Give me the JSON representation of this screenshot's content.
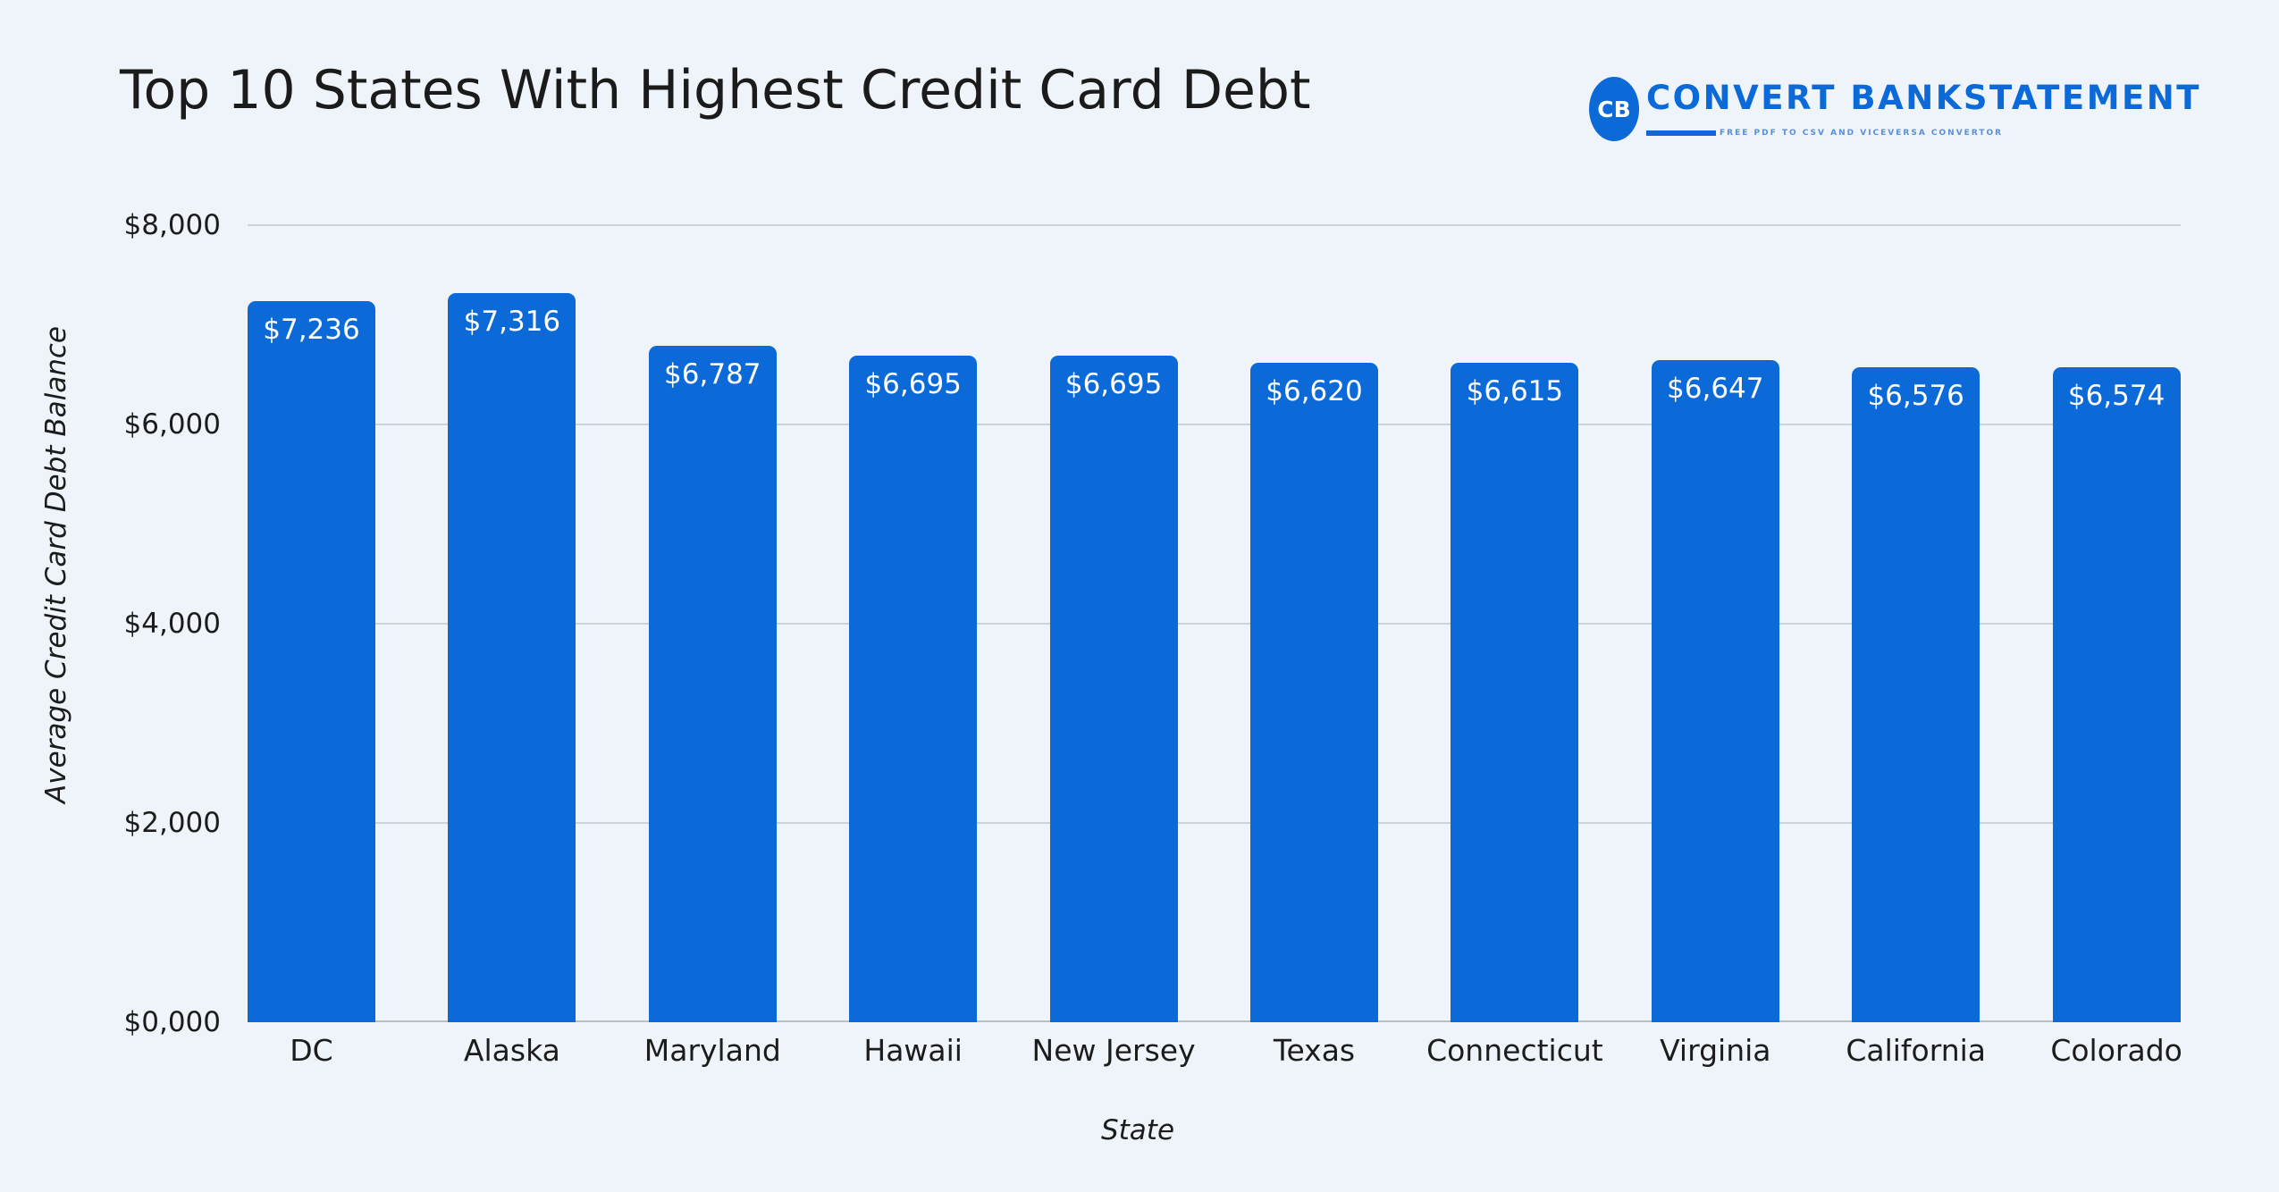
{
  "header": {
    "title": "Top 10 States With Highest Credit Card Debt"
  },
  "logo": {
    "badge": "CB",
    "name": "CONVERT BANKSTATEMENT",
    "tagline": "FREE PDF TO CSV AND VICEVERSA CONVERTOR",
    "color": "#0B69D8"
  },
  "colors": {
    "bar": "#0B69D8",
    "background": "#EEF4F9",
    "gridline": "#CDD3DA"
  },
  "chart_data": {
    "type": "bar",
    "title": "Top 10 States With Highest Credit Card Debt",
    "xlabel": "State",
    "ylabel": "Average Credit Card Debt Balance",
    "categories": [
      "DC",
      "Alaska",
      "Maryland",
      "Hawaii",
      "New Jersey",
      "Texas",
      "Connecticut",
      "Virginia",
      "California",
      "Colorado"
    ],
    "values": [
      7236,
      7316,
      6787,
      6695,
      6695,
      6620,
      6615,
      6647,
      6576,
      6574
    ],
    "value_labels": [
      "$7,236",
      "$7,316",
      "$6,787",
      "$6,695",
      "$6,695",
      "$6,620",
      "$6,615",
      "$6,647",
      "$6,576",
      "$6,574"
    ],
    "ylim": [
      0,
      8000
    ],
    "yticks": [
      0,
      2000,
      4000,
      6000,
      8000
    ],
    "ytick_labels": [
      "$0,000",
      "$2,000",
      "$4,000",
      "$6,000",
      "$8,000"
    ],
    "grid": true,
    "legend": null
  }
}
